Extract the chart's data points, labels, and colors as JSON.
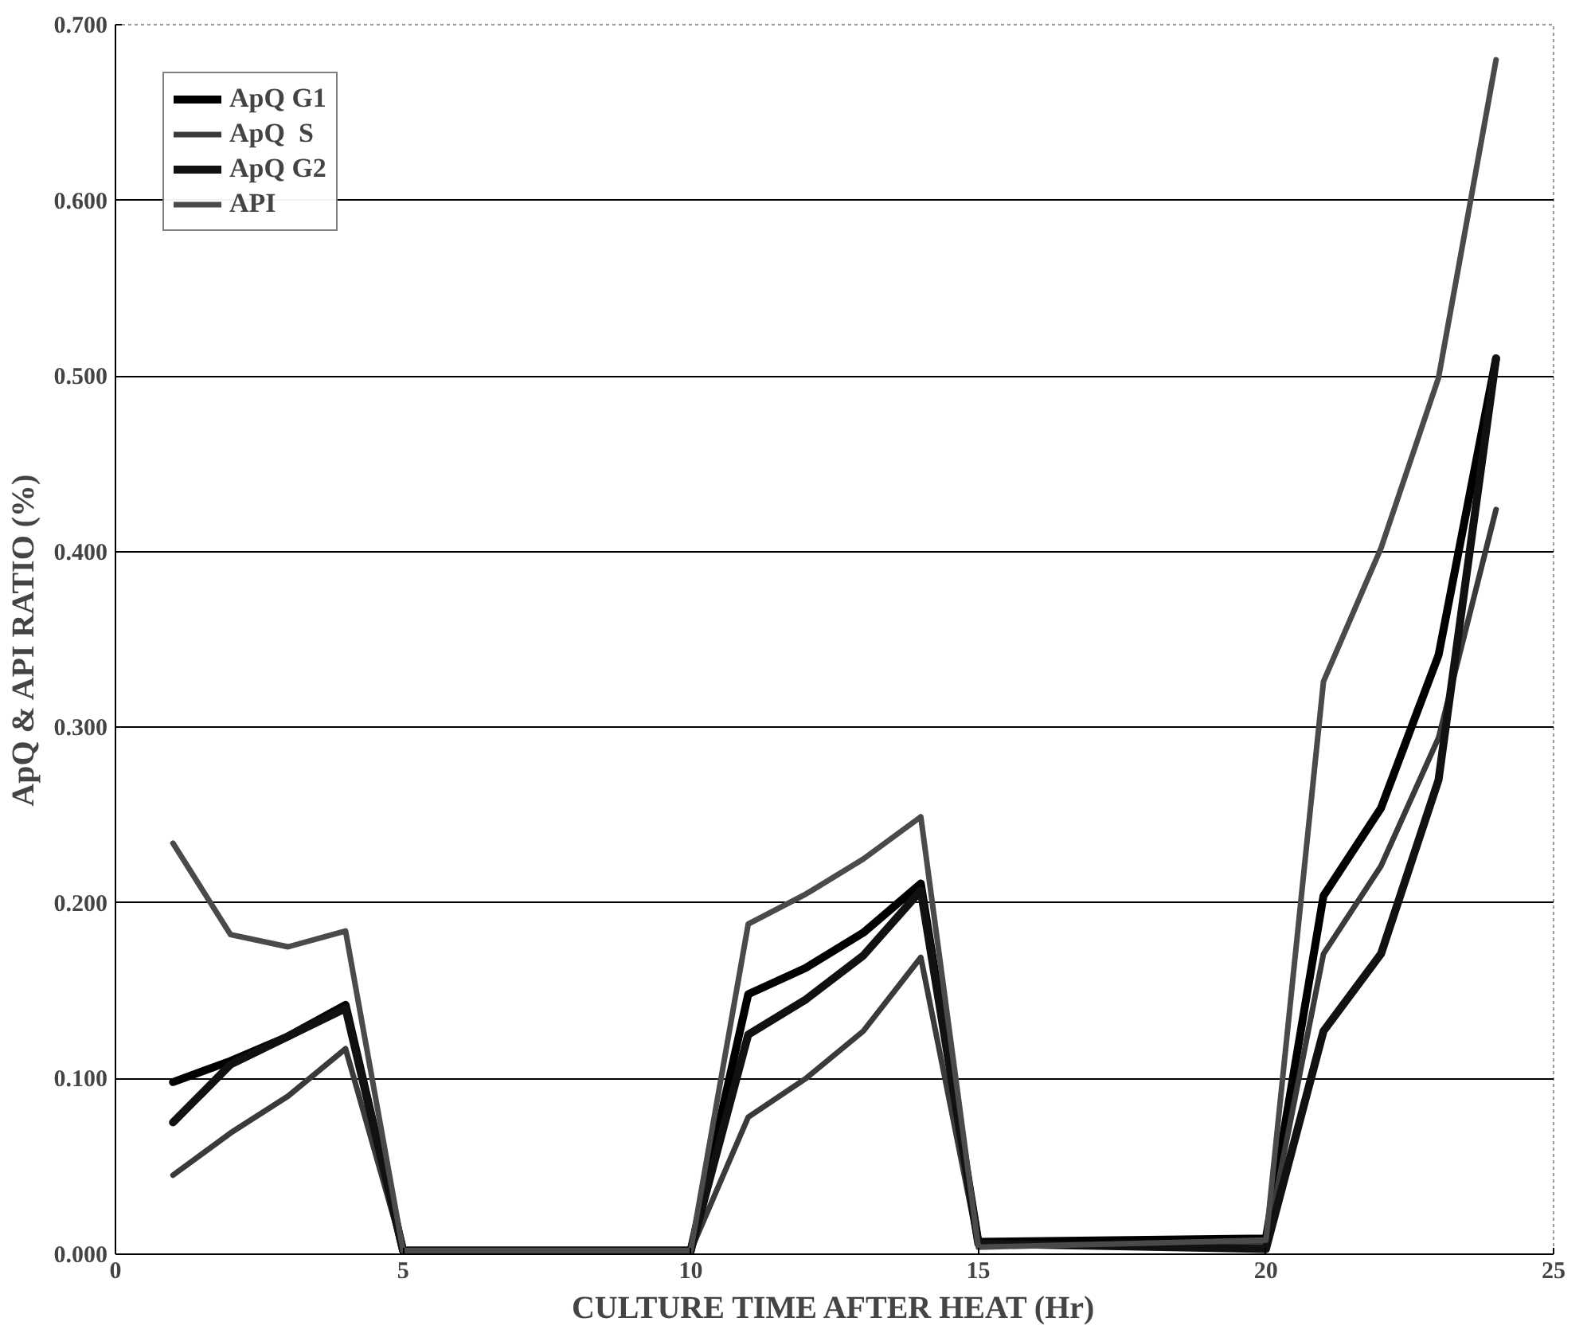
{
  "chart_data": {
    "type": "line",
    "xlabel": "CULTURE TIME AFTER HEAT (Hr)",
    "ylabel": "ApQ & API RATIO (%)",
    "x": [
      1,
      2,
      3,
      4,
      5,
      10,
      11,
      12,
      13,
      14,
      15,
      20,
      21,
      22,
      23,
      24
    ],
    "series": [
      {
        "name": "ApQ G1",
        "color": "#000000",
        "values": [
          0.098,
          0.11,
          0.124,
          0.142,
          0.002,
          0.002,
          0.148,
          0.163,
          0.183,
          0.211,
          0.007,
          0.009,
          0.204,
          0.254,
          0.341,
          0.51
        ]
      },
      {
        "name": "ApQ  S",
        "color": "#3a3a3a",
        "values": [
          0.045,
          0.069,
          0.09,
          0.117,
          0.002,
          0.002,
          0.078,
          0.1,
          0.127,
          0.169,
          0.005,
          0.005,
          0.171,
          0.221,
          0.294,
          0.424
        ]
      },
      {
        "name": "ApQ G2",
        "color": "#111111",
        "values": [
          0.075,
          0.108,
          0.124,
          0.14,
          0.002,
          0.002,
          0.125,
          0.145,
          0.17,
          0.207,
          0.006,
          0.003,
          0.127,
          0.171,
          0.27,
          0.51
        ]
      },
      {
        "name": "API",
        "color": "#4a4a4a",
        "values": [
          0.234,
          0.182,
          0.175,
          0.184,
          0.002,
          0.002,
          0.188,
          0.205,
          0.225,
          0.249,
          0.004,
          0.008,
          0.326,
          0.402,
          0.499,
          0.68
        ]
      }
    ],
    "xlim": [
      0,
      25
    ],
    "xticks": [
      0,
      5,
      10,
      15,
      20,
      25
    ],
    "ylim": [
      0,
      0.7
    ],
    "yticks": [
      {
        "value": 0,
        "label": "0.000"
      },
      {
        "value": 0.1,
        "label": "0.100"
      },
      {
        "value": 0.2,
        "label": "0.200"
      },
      {
        "value": 0.3,
        "label": "0.300"
      },
      {
        "value": 0.4,
        "label": "0.400"
      },
      {
        "value": 0.5,
        "label": "0.500"
      },
      {
        "value": 0.6,
        "label": "0.600"
      },
      {
        "value": 0.7,
        "label": "0.700"
      }
    ],
    "grid": "y",
    "legend": "top left",
    "marker": "none",
    "line_style": "solid"
  }
}
